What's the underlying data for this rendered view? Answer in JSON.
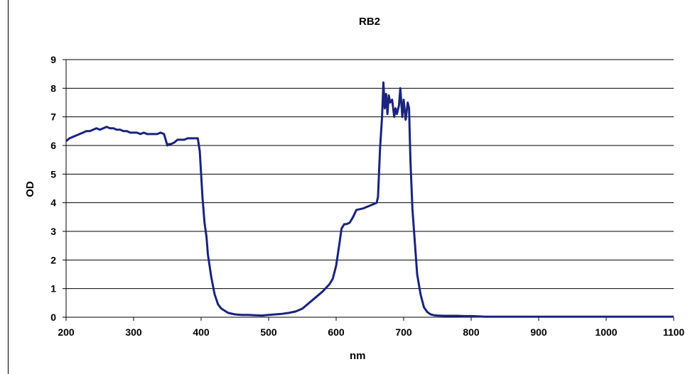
{
  "chart_data": {
    "type": "line",
    "title": "RB2",
    "xlabel": "nm",
    "ylabel": "OD",
    "xlim": [
      200,
      1100
    ],
    "ylim": [
      0,
      9
    ],
    "x_ticks": [
      200,
      300,
      400,
      500,
      600,
      700,
      800,
      900,
      1000,
      1100
    ],
    "y_ticks": [
      0,
      1,
      2,
      3,
      4,
      5,
      6,
      7,
      8,
      9
    ],
    "grid": "horizontal",
    "legend": "none",
    "series": [
      {
        "color": "#1a237e",
        "x": [
          200,
          205,
          210,
          215,
          220,
          225,
          230,
          235,
          240,
          245,
          250,
          255,
          260,
          265,
          270,
          275,
          280,
          285,
          290,
          295,
          300,
          305,
          310,
          315,
          320,
          325,
          330,
          335,
          340,
          345,
          350,
          352,
          355,
          360,
          365,
          370,
          375,
          380,
          385,
          390,
          395,
          398,
          400,
          402,
          405,
          408,
          410,
          415,
          420,
          425,
          430,
          440,
          450,
          460,
          470,
          480,
          490,
          500,
          510,
          520,
          530,
          540,
          550,
          560,
          570,
          580,
          590,
          595,
          600,
          605,
          608,
          612,
          615,
          620,
          625,
          630,
          640,
          650,
          655,
          660,
          662,
          665,
          668,
          670,
          672,
          674,
          676,
          678,
          680,
          683,
          686,
          688,
          690,
          693,
          695,
          698,
          700,
          703,
          706,
          708,
          710,
          713,
          716,
          720,
          725,
          730,
          735,
          740,
          745,
          750,
          760,
          770,
          780,
          790,
          800,
          810,
          820,
          850,
          900,
          950,
          1000,
          1050,
          1100
        ],
        "y": [
          6.15,
          6.25,
          6.3,
          6.35,
          6.4,
          6.45,
          6.5,
          6.5,
          6.55,
          6.6,
          6.55,
          6.6,
          6.65,
          6.6,
          6.6,
          6.55,
          6.55,
          6.5,
          6.5,
          6.45,
          6.45,
          6.45,
          6.4,
          6.45,
          6.4,
          6.4,
          6.4,
          6.4,
          6.45,
          6.4,
          6.0,
          6.05,
          6.05,
          6.1,
          6.2,
          6.2,
          6.2,
          6.25,
          6.25,
          6.25,
          6.25,
          5.8,
          5.0,
          4.2,
          3.3,
          2.8,
          2.2,
          1.4,
          0.8,
          0.45,
          0.3,
          0.15,
          0.1,
          0.08,
          0.08,
          0.07,
          0.06,
          0.08,
          0.1,
          0.12,
          0.15,
          0.2,
          0.3,
          0.5,
          0.7,
          0.9,
          1.15,
          1.35,
          1.8,
          2.6,
          3.1,
          3.25,
          3.25,
          3.3,
          3.5,
          3.75,
          3.8,
          3.9,
          3.95,
          4.0,
          4.2,
          5.9,
          7.0,
          8.2,
          7.3,
          7.8,
          7.1,
          7.75,
          7.5,
          7.6,
          7.0,
          7.3,
          7.1,
          7.4,
          8.0,
          7.0,
          7.6,
          6.9,
          7.5,
          7.3,
          5.5,
          3.8,
          2.8,
          1.5,
          0.8,
          0.35,
          0.18,
          0.1,
          0.07,
          0.06,
          0.05,
          0.05,
          0.05,
          0.04,
          0.04,
          0.03,
          0.02,
          0.02,
          0.02,
          0.02,
          0.02,
          0.02,
          0.02
        ]
      }
    ]
  }
}
